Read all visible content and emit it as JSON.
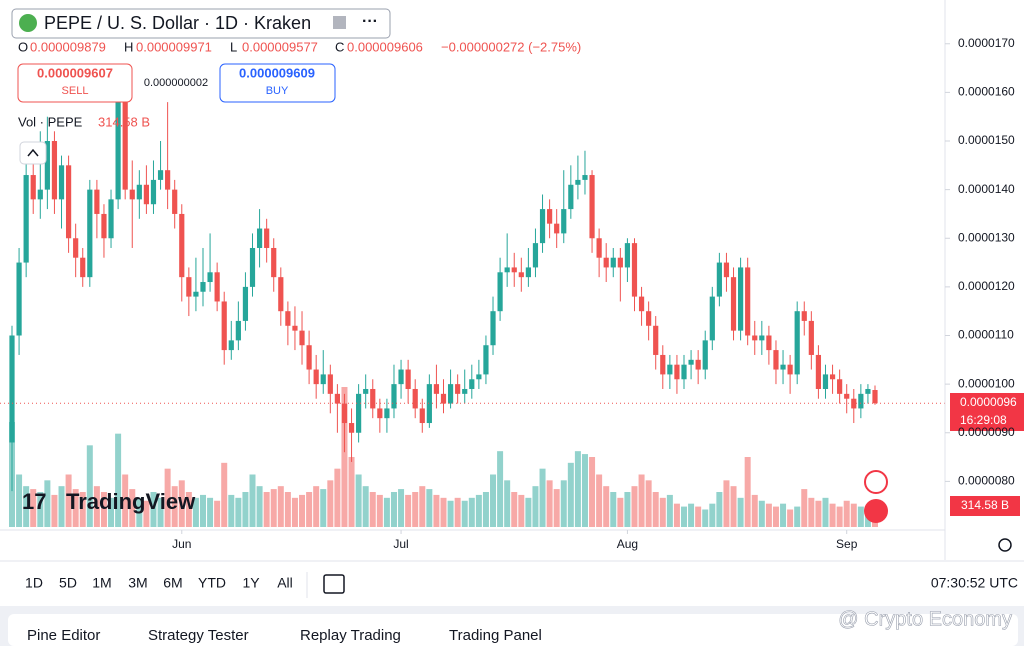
{
  "header": {
    "symbol": "PEPE / U. S. Dollar · 1D · Kraken",
    "ohlc": [
      {
        "key": "O",
        "value": "0.000009879"
      },
      {
        "key": "H",
        "value": "0.000009971"
      },
      {
        "key": "L",
        "value": "0.000009577"
      },
      {
        "key": "C",
        "value": "0.000009606"
      }
    ],
    "change": "−0.000000272 (−2.75%)"
  },
  "trade": {
    "sell_price": "0.000009607",
    "sell": "SELL",
    "spread": "0.000000002",
    "buy_price": "0.000009609",
    "buy": "BUY"
  },
  "volume_legend": {
    "label": "Vol · PEPE",
    "value": "314.58 B"
  },
  "price_tag": {
    "price": "0.0000096",
    "countdown": "16:29:08"
  },
  "volume_tag": "314.58 B",
  "logo": "TradingView",
  "toolbar": {
    "ranges": [
      "1D",
      "5D",
      "1M",
      "3M",
      "6M",
      "YTD",
      "1Y",
      "All"
    ],
    "clock": "07:30:52 UTC"
  },
  "tabs": [
    "Pine Editor",
    "Strategy Tester",
    "Replay Trading",
    "Trading Panel"
  ],
  "watermark": "@ Crypto Economy",
  "chart_data": {
    "type": "candlestick",
    "colors": {
      "up": "#26a69a",
      "down": "#ef5350"
    },
    "ylim": [
      7e-06,
      1.79e-05
    ],
    "yticks": [
      {
        "value": 1.7e-05,
        "label": "0.0000170"
      },
      {
        "value": 1.6e-05,
        "label": "0.0000160"
      },
      {
        "value": 1.5e-05,
        "label": "0.0000150"
      },
      {
        "value": 1.4e-05,
        "label": "0.0000140"
      },
      {
        "value": 1.3e-05,
        "label": "0.0000130"
      },
      {
        "value": 1.2e-05,
        "label": "0.0000120"
      },
      {
        "value": 1.1e-05,
        "label": "0.0000110"
      },
      {
        "value": 1e-05,
        "label": "0.0000100"
      },
      {
        "value": 9e-06,
        "label": "0.0000090"
      },
      {
        "value": 8e-06,
        "label": "0.0000080"
      }
    ],
    "xticks": [
      {
        "value": 24,
        "label": "Jun"
      },
      {
        "value": 55,
        "label": "Jul"
      },
      {
        "value": 87,
        "label": "Aug"
      },
      {
        "value": 118,
        "label": "Sep"
      }
    ],
    "open": [
      8.8e-06,
      1.1e-05,
      1.25e-05,
      1.43e-05,
      1.38e-05,
      1.4e-05,
      1.5e-05,
      1.38e-05,
      1.45e-05,
      1.3e-05,
      1.26e-05,
      1.22e-05,
      1.4e-05,
      1.35e-05,
      1.3e-05,
      1.38e-05,
      1.58e-05,
      1.4e-05,
      1.38e-05,
      1.41e-05,
      1.37e-05,
      1.42e-05,
      1.44e-05,
      1.4e-05,
      1.35e-05,
      1.22e-05,
      1.18e-05,
      1.19e-05,
      1.21e-05,
      1.23e-05,
      1.17e-05,
      1.07e-05,
      1.09e-05,
      1.13e-05,
      1.2e-05,
      1.28e-05,
      1.32e-05,
      1.28e-05,
      1.22e-05,
      1.15e-05,
      1.12e-05,
      1.11e-05,
      1.08e-05,
      1.03e-05,
      1e-05,
      1.02e-05,
      9.8e-06,
      9.6e-06,
      9.2e-06,
      9e-06,
      9.8e-06,
      9.9e-06,
      9.5e-06,
      9.3e-06,
      9.5e-06,
      1e-05,
      1.03e-05,
      9.9e-06,
      9.5e-06,
      9.2e-06,
      1e-05,
      9.8e-06,
      9.6e-06,
      1e-05,
      9.8e-06,
      9.9e-06,
      1.01e-05,
      1.02e-05,
      1.08e-05,
      1.15e-05,
      1.23e-05,
      1.24e-05,
      1.23e-05,
      1.22e-05,
      1.24e-05,
      1.29e-05,
      1.36e-05,
      1.33e-05,
      1.31e-05,
      1.36e-05,
      1.41e-05,
      1.42e-05,
      1.43e-05,
      1.3e-05,
      1.26e-05,
      1.24e-05,
      1.26e-05,
      1.24e-05,
      1.29e-05,
      1.18e-05,
      1.15e-05,
      1.12e-05,
      1.06e-05,
      1.02e-05,
      1.04e-05,
      1.01e-05,
      1.04e-05,
      1.05e-05,
      1.03e-05,
      1.09e-05,
      1.18e-05,
      1.25e-05,
      1.22e-05,
      1.11e-05,
      1.24e-05,
      1.1e-05,
      1.09e-05,
      1.1e-05,
      1.07e-05,
      1.03e-05,
      1.04e-05,
      1.02e-05,
      1.15e-05,
      1.13e-05,
      1.06e-05,
      9.9e-06,
      1.02e-05,
      1.01e-05,
      9.8e-06,
      9.7e-06,
      9.5e-06,
      9.8e-06,
      9.879e-06
    ],
    "high": [
      1.12e-05,
      1.28e-05,
      1.47e-05,
      1.46e-05,
      1.52e-05,
      1.55e-05,
      1.52e-05,
      1.47e-05,
      1.47e-05,
      1.33e-05,
      1.28e-05,
      1.42e-05,
      1.42e-05,
      1.37e-05,
      1.4e-05,
      1.6e-05,
      1.59e-05,
      1.46e-05,
      1.44e-05,
      1.45e-05,
      1.46e-05,
      1.5e-05,
      1.58e-05,
      1.42e-05,
      1.37e-05,
      1.24e-05,
      1.26e-05,
      1.28e-05,
      1.31e-05,
      1.25e-05,
      1.19e-05,
      1.13e-05,
      1.17e-05,
      1.23e-05,
      1.31e-05,
      1.36e-05,
      1.34e-05,
      1.3e-05,
      1.24e-05,
      1.17e-05,
      1.16e-05,
      1.15e-05,
      1.11e-05,
      1.06e-05,
      1.07e-05,
      1.04e-05,
      1e-05,
      9.8e-06,
      9.5e-06,
      1e-05,
      1.02e-05,
      1.01e-05,
      9.7e-06,
      9.7e-06,
      1.04e-05,
      1.05e-05,
      1.05e-05,
      1.01e-05,
      9.7e-06,
      1.02e-05,
      1.04e-05,
      1.01e-05,
      1.03e-05,
      1.02e-05,
      1.03e-05,
      1.04e-05,
      1.05e-05,
      1.1e-05,
      1.18e-05,
      1.26e-05,
      1.31e-05,
      1.27e-05,
      1.26e-05,
      1.28e-05,
      1.32e-05,
      1.39e-05,
      1.38e-05,
      1.36e-05,
      1.44e-05,
      1.45e-05,
      1.47e-05,
      1.48e-05,
      1.44e-05,
      1.32e-05,
      1.29e-05,
      1.28e-05,
      1.28e-05,
      1.3e-05,
      1.3e-05,
      1.2e-05,
      1.17e-05,
      1.14e-05,
      1.08e-05,
      1.06e-05,
      1.06e-05,
      1.06e-05,
      1.07e-05,
      1.07e-05,
      1.11e-05,
      1.2e-05,
      1.27e-05,
      1.27e-05,
      1.24e-05,
      1.26e-05,
      1.26e-05,
      1.13e-05,
      1.13e-05,
      1.12e-05,
      1.09e-05,
      1.07e-05,
      1.06e-05,
      1.17e-05,
      1.17e-05,
      1.15e-05,
      1.08e-05,
      1.04e-05,
      1.04e-05,
      1.03e-05,
      1e-05,
      9.9e-06,
      1e-05,
      1e-05,
      9.971e-06
    ],
    "low": [
      7.8e-06,
      1.06e-05,
      1.22e-05,
      1.35e-05,
      1.34e-05,
      1.36e-05,
      1.35e-05,
      1.32e-05,
      1.27e-05,
      1.22e-05,
      1.2e-05,
      1.2e-05,
      1.3e-05,
      1.26e-05,
      1.28e-05,
      1.36e-05,
      1.38e-05,
      1.28e-05,
      1.34e-05,
      1.35e-05,
      1.35e-05,
      1.4e-05,
      1.36e-05,
      1.32e-05,
      1.17e-05,
      1.14e-05,
      1.15e-05,
      1.16e-05,
      1.19e-05,
      1.15e-05,
      1.04e-05,
      1.05e-05,
      1.07e-05,
      1.11e-05,
      1.18e-05,
      1.24e-05,
      1.25e-05,
      1.19e-05,
      1.12e-05,
      1.08e-05,
      1.07e-05,
      1.04e-05,
      1e-05,
      9.7e-06,
      9.8e-06,
      9.4e-06,
      9e-06,
      8.6e-06,
      8.4e-06,
      8.8e-06,
      9.5e-06,
      9.3e-06,
      9e-06,
      9e-06,
      9.3e-06,
      9.7e-06,
      9.6e-06,
      9.3e-06,
      9e-06,
      9.1e-06,
      9.5e-06,
      9.4e-06,
      9.5e-06,
      9.6e-06,
      9.6e-06,
      9.7e-06,
      9.9e-06,
      1e-05,
      1.06e-05,
      1.13e-05,
      1.2e-05,
      1.2e-05,
      1.19e-05,
      1.2e-05,
      1.22e-05,
      1.27e-05,
      1.3e-05,
      1.28e-05,
      1.29e-05,
      1.34e-05,
      1.38e-05,
      1.39e-05,
      1.27e-05,
      1.22e-05,
      1.21e-05,
      1.22e-05,
      1.17e-05,
      1.21e-05,
      1.15e-05,
      1.12e-05,
      1.09e-05,
      1.03e-05,
      9.9e-06,
      9.9e-06,
      9.8e-06,
      9.9e-06,
      1.01e-05,
      1e-05,
      1.01e-05,
      1.07e-05,
      1.16e-05,
      1.19e-05,
      1.09e-05,
      1.09e-05,
      1.08e-05,
      1.06e-05,
      1.06e-05,
      1.04e-05,
      1e-05,
      1e-05,
      9.8e-06,
      1e-05,
      1.1e-05,
      1.03e-05,
      9.7e-06,
      9.7e-06,
      9.8e-06,
      9.6e-06,
      9.4e-06,
      9.2e-06,
      9.3e-06,
      9.6e-06,
      9.577e-06
    ],
    "close": [
      1.1e-05,
      1.25e-05,
      1.43e-05,
      1.38e-05,
      1.4e-05,
      1.5e-05,
      1.38e-05,
      1.45e-05,
      1.3e-05,
      1.26e-05,
      1.22e-05,
      1.4e-05,
      1.35e-05,
      1.3e-05,
      1.38e-05,
      1.58e-05,
      1.4e-05,
      1.38e-05,
      1.41e-05,
      1.37e-05,
      1.42e-05,
      1.44e-05,
      1.4e-05,
      1.35e-05,
      1.22e-05,
      1.18e-05,
      1.19e-05,
      1.21e-05,
      1.23e-05,
      1.17e-05,
      1.07e-05,
      1.09e-05,
      1.13e-05,
      1.2e-05,
      1.28e-05,
      1.32e-05,
      1.28e-05,
      1.22e-05,
      1.15e-05,
      1.12e-05,
      1.11e-05,
      1.08e-05,
      1.03e-05,
      1e-05,
      1.02e-05,
      9.8e-06,
      9.6e-06,
      9.2e-06,
      9e-06,
      9.8e-06,
      9.9e-06,
      9.5e-06,
      9.3e-06,
      9.5e-06,
      1e-05,
      1.03e-05,
      9.9e-06,
      9.5e-06,
      9.2e-06,
      1e-05,
      9.8e-06,
      9.6e-06,
      1e-05,
      9.8e-06,
      9.9e-06,
      1.01e-05,
      1.02e-05,
      1.08e-05,
      1.15e-05,
      1.23e-05,
      1.24e-05,
      1.23e-05,
      1.22e-05,
      1.24e-05,
      1.29e-05,
      1.36e-05,
      1.33e-05,
      1.31e-05,
      1.36e-05,
      1.41e-05,
      1.42e-05,
      1.43e-05,
      1.3e-05,
      1.26e-05,
      1.24e-05,
      1.26e-05,
      1.24e-05,
      1.29e-05,
      1.18e-05,
      1.15e-05,
      1.12e-05,
      1.06e-05,
      1.02e-05,
      1.04e-05,
      1.01e-05,
      1.04e-05,
      1.05e-05,
      1.03e-05,
      1.09e-05,
      1.18e-05,
      1.25e-05,
      1.22e-05,
      1.11e-05,
      1.24e-05,
      1.1e-05,
      1.09e-05,
      1.1e-05,
      1.07e-05,
      1.03e-05,
      1.04e-05,
      1.02e-05,
      1.15e-05,
      1.13e-05,
      1.06e-05,
      9.9e-06,
      1.02e-05,
      1.01e-05,
      9.8e-06,
      9.7e-06,
      9.5e-06,
      9.8e-06,
      9.9e-06,
      9.606e-06
    ],
    "volume": [
      1800,
      900,
      700,
      650,
      600,
      800,
      550,
      700,
      900,
      650,
      600,
      1400,
      700,
      600,
      500,
      1600,
      900,
      650,
      500,
      450,
      600,
      500,
      1000,
      700,
      800,
      600,
      500,
      550,
      500,
      450,
      1100,
      550,
      500,
      600,
      900,
      700,
      600,
      650,
      700,
      600,
      500,
      550,
      600,
      700,
      650,
      800,
      1000,
      2400,
      1200,
      900,
      700,
      600,
      550,
      500,
      600,
      650,
      550,
      600,
      700,
      650,
      550,
      500,
      450,
      500,
      450,
      500,
      550,
      600,
      900,
      1300,
      800,
      600,
      550,
      500,
      700,
      1000,
      800,
      650,
      800,
      1100,
      1300,
      1250,
      1200,
      900,
      700,
      600,
      500,
      600,
      700,
      900,
      800,
      600,
      500,
      550,
      400,
      350,
      400,
      350,
      300,
      400,
      600,
      800,
      700,
      500,
      1200,
      550,
      450,
      400,
      350,
      400,
      300,
      350,
      650,
      500,
      450,
      500,
      400,
      350,
      450,
      400,
      350,
      300,
      314.58
    ]
  }
}
